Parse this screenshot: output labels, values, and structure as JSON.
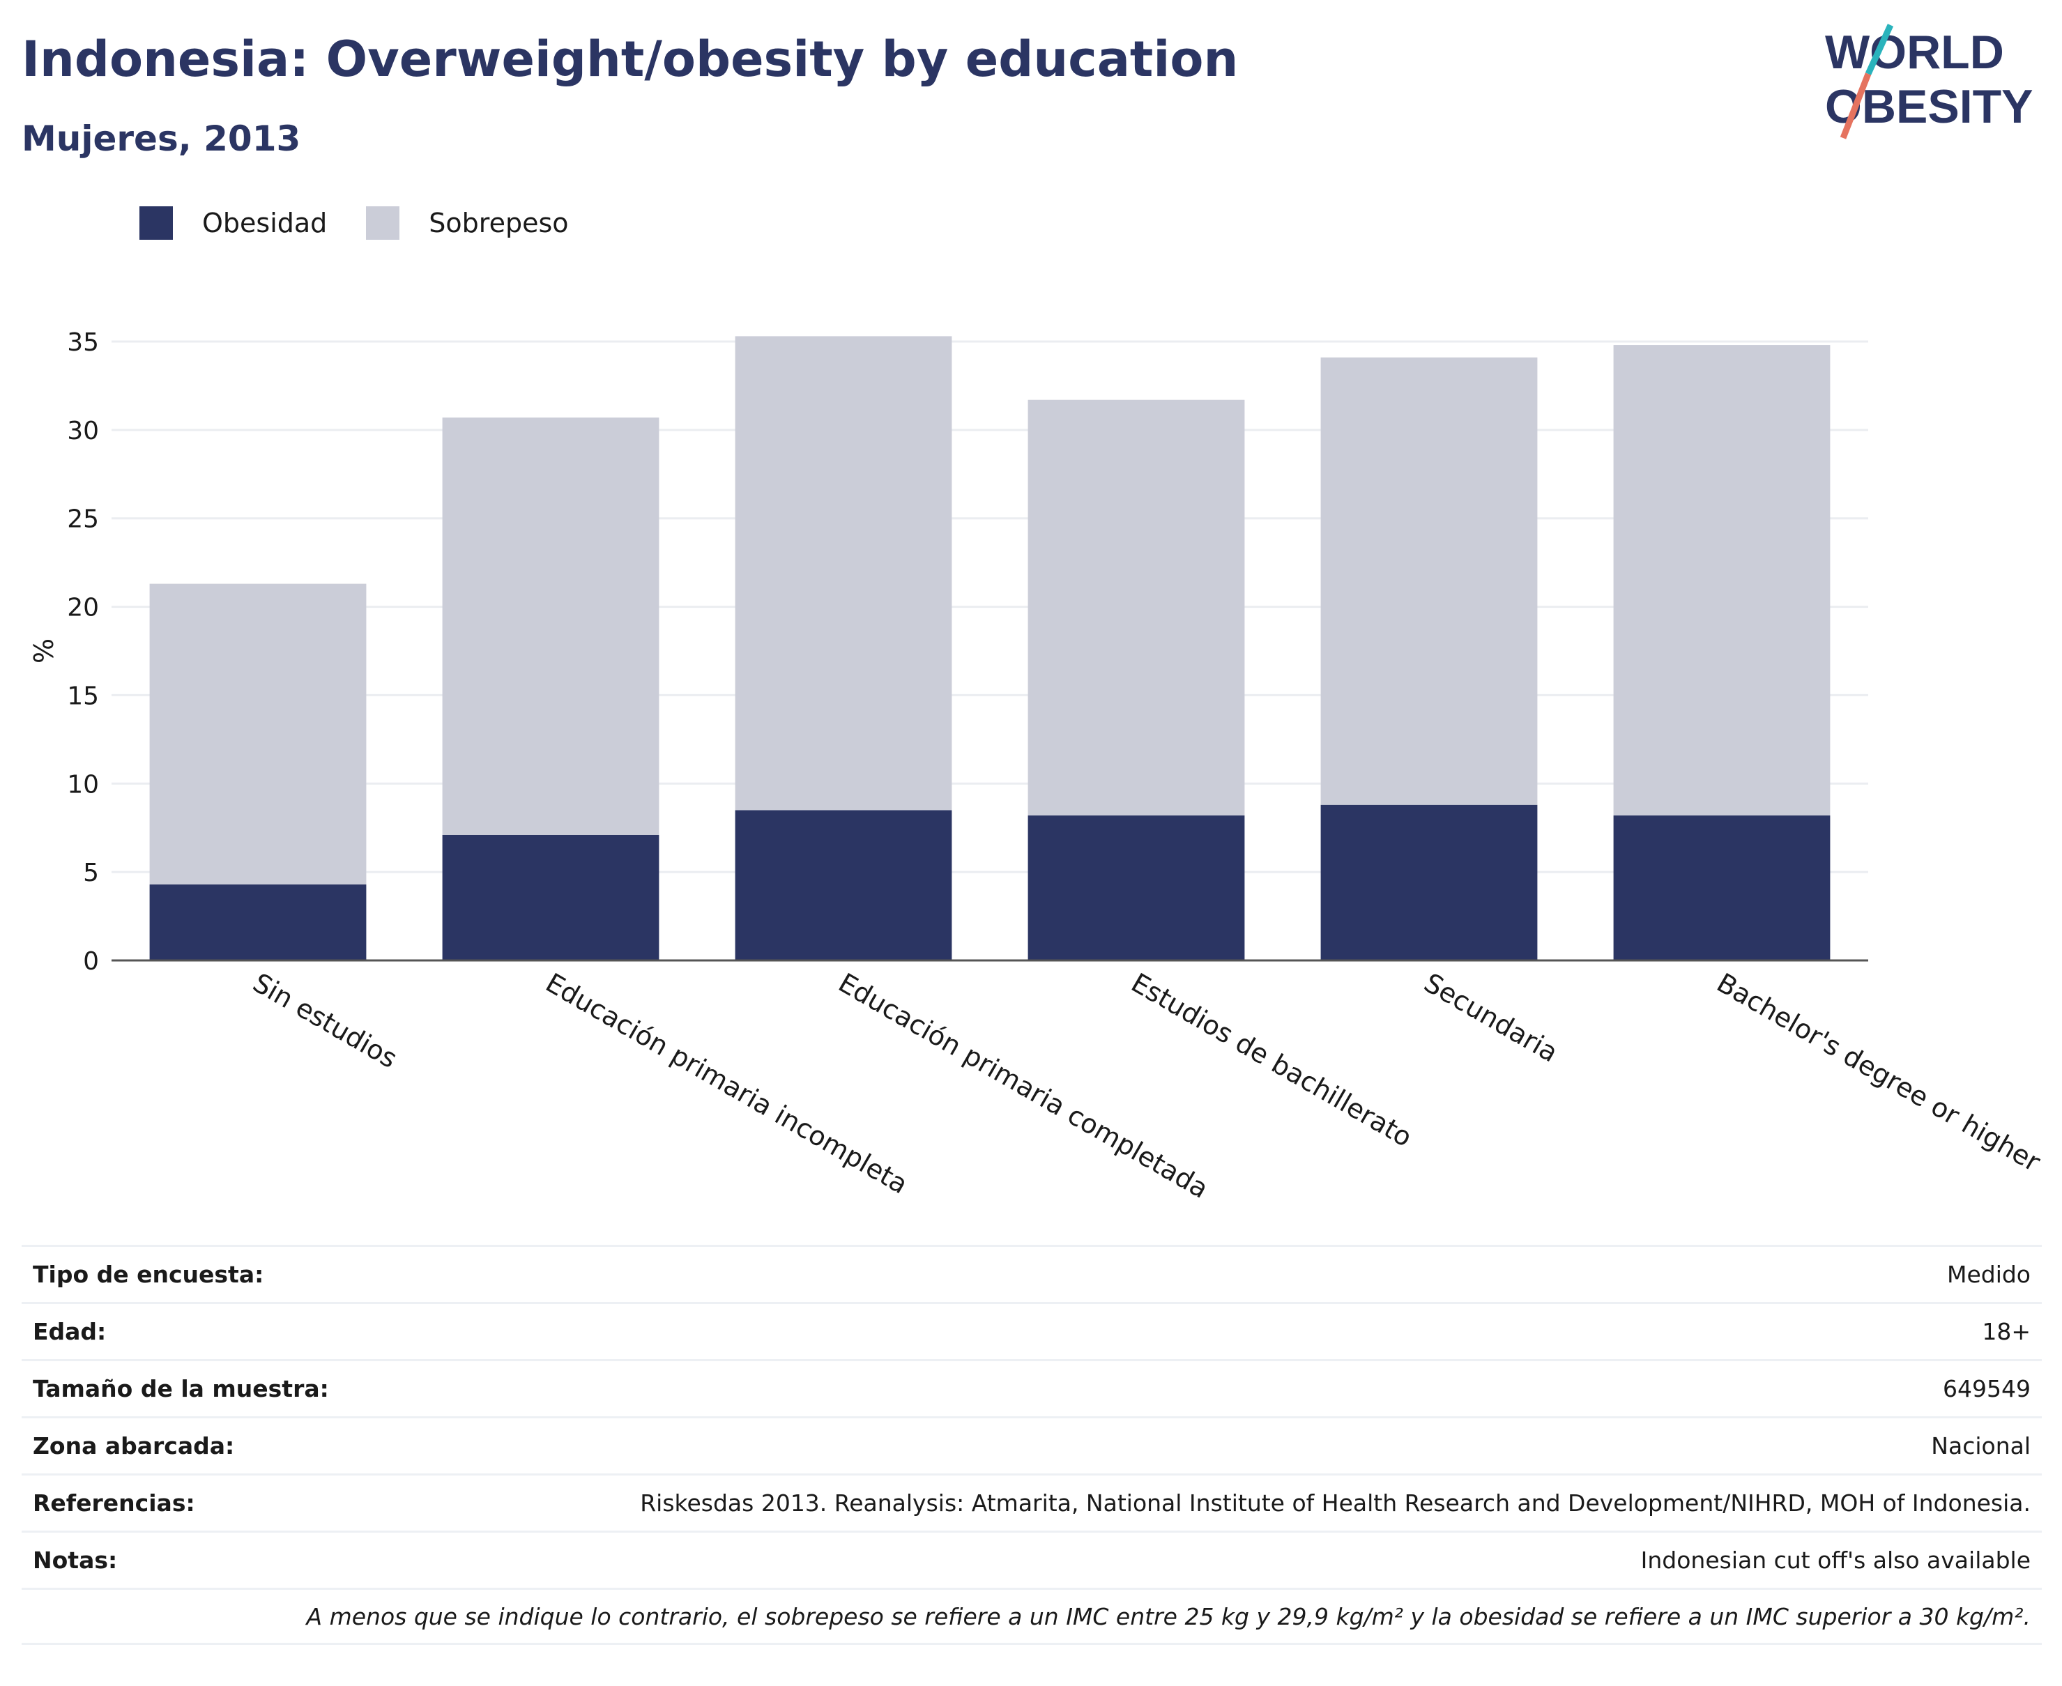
{
  "header": {
    "title": "Indonesia: Overweight/obesity by education",
    "subtitle": "Mujeres, 2013"
  },
  "logo": {
    "line1": "WORLD",
    "line2": "OBESITY",
    "colors": {
      "text": "#2b3563",
      "slash_top": "#2ab3bc",
      "slash_bottom": "#e5735f"
    }
  },
  "legend": {
    "items": [
      {
        "label": "Obesidad",
        "color": "#2b3563"
      },
      {
        "label": "Sobrepeso",
        "color": "#cbcdd8"
      }
    ]
  },
  "chart_data": {
    "type": "bar",
    "stacked": true,
    "categories": [
      "Sin estudios",
      "Educación primaria incompleta",
      "Educación primaria completada",
      "Estudios de bachillerato",
      "Secundaria",
      "Bachelor's degree or higher"
    ],
    "series": [
      {
        "name": "Obesidad",
        "color": "#2b3563",
        "values": [
          4.3,
          7.1,
          8.5,
          8.2,
          8.8,
          8.2
        ]
      },
      {
        "name": "Sobrepeso",
        "color": "#cbcdd8",
        "values": [
          17.0,
          23.6,
          26.8,
          23.5,
          25.3,
          26.6
        ]
      }
    ],
    "ylabel": "%",
    "ylim": [
      0,
      35
    ],
    "yticks": [
      0,
      5,
      10,
      15,
      20,
      25,
      30,
      35
    ],
    "grid": true,
    "legend_position": "top-left"
  },
  "info": {
    "rows": [
      {
        "label": "Tipo de encuesta:",
        "value": "Medido"
      },
      {
        "label": "Edad:",
        "value": "18+"
      },
      {
        "label": "Tamaño de la muestra:",
        "value": "649549"
      },
      {
        "label": "Zona abarcada:",
        "value": "Nacional"
      },
      {
        "label": "Referencias:",
        "value": "Riskesdas 2013. Reanalysis: Atmarita, National Institute of Health Research and Development/NIHRD, MOH of Indonesia."
      },
      {
        "label": "Notas:",
        "value": "Indonesian cut off's also available"
      }
    ],
    "note": "A menos que se indique lo contrario, el sobrepeso se refiere a un IMC entre 25 kg y 29,9 kg/m² y la obesidad se refiere a un IMC superior a 30 kg/m²."
  }
}
